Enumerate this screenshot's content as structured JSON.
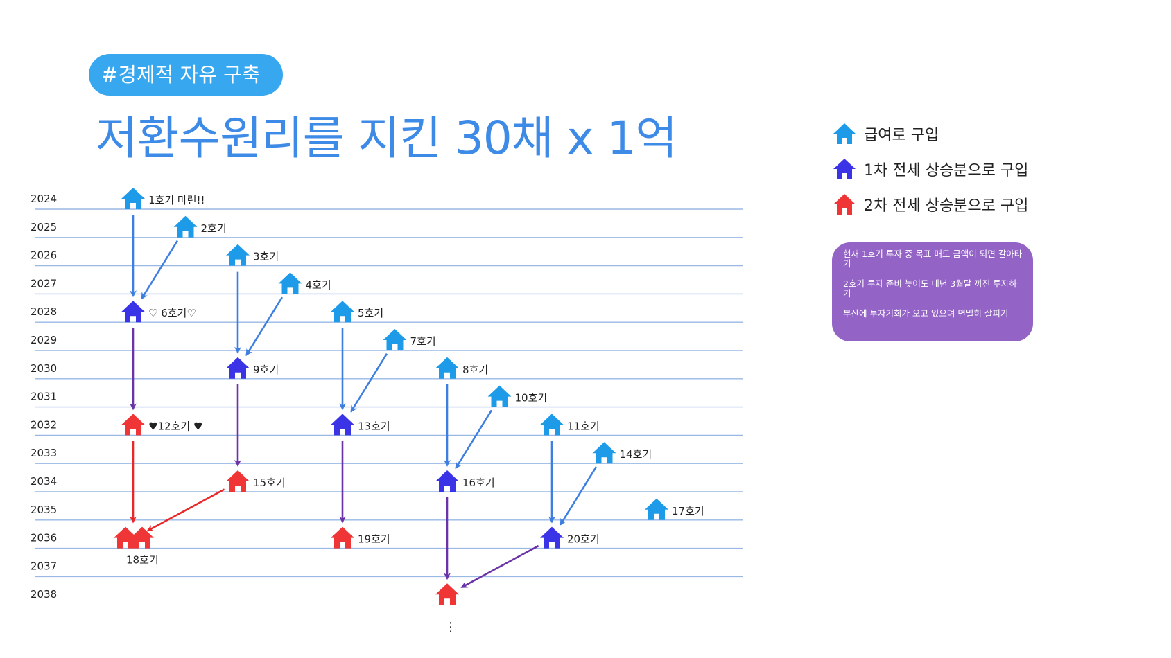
{
  "tag": "#경제적 자유 구축",
  "title": "저환수원리를 지킨 30채 x 1억",
  "colors": {
    "salary": "#1e9be8",
    "jeonse1": "#3a34e6",
    "jeonse2": "#ef3535",
    "arrow_blue": "#3d7fe0",
    "arrow_purple": "#6a33a8",
    "arrow_red": "#e8272a",
    "grid": "#9ab8e4",
    "note_bg": "#9363c6",
    "title": "#3d8be6",
    "tag_bg": "#37a8f0"
  },
  "years": [
    "2024",
    "2025",
    "2026",
    "2027",
    "2028",
    "2029",
    "2030",
    "2031",
    "2032",
    "2033",
    "2034",
    "2035",
    "2036",
    "2037",
    "2038"
  ],
  "houses": [
    {
      "id": 1,
      "label": "1호기 마련!!",
      "year": 2024,
      "col": 0,
      "type": "salary"
    },
    {
      "id": 2,
      "label": "2호기",
      "year": 2025,
      "col": 1,
      "type": "salary"
    },
    {
      "id": 3,
      "label": "3호기",
      "year": 2026,
      "col": 2,
      "type": "salary"
    },
    {
      "id": 4,
      "label": "4호기",
      "year": 2027,
      "col": 3,
      "type": "salary"
    },
    {
      "id": 5,
      "label": "5호기",
      "year": 2028,
      "col": 4,
      "type": "salary"
    },
    {
      "id": 6,
      "label": "♡ 6호기♡",
      "year": 2028,
      "col": 0,
      "type": "jeonse1"
    },
    {
      "id": 7,
      "label": "7호기",
      "year": 2029,
      "col": 5,
      "type": "salary"
    },
    {
      "id": 8,
      "label": "8호기",
      "year": 2030,
      "col": 6,
      "type": "salary"
    },
    {
      "id": 9,
      "label": "9호기",
      "year": 2030,
      "col": 2,
      "type": "jeonse1"
    },
    {
      "id": 10,
      "label": "10호기",
      "year": 2031,
      "col": 7,
      "type": "salary"
    },
    {
      "id": 11,
      "label": "11호기",
      "year": 2032,
      "col": 8,
      "type": "salary"
    },
    {
      "id": 12,
      "label": "♥12호기 ♥",
      "year": 2032,
      "col": 0,
      "type": "jeonse2"
    },
    {
      "id": 13,
      "label": "13호기",
      "year": 2032,
      "col": 4,
      "type": "jeonse1"
    },
    {
      "id": 14,
      "label": "14호기",
      "year": 2033,
      "col": 9,
      "type": "salary"
    },
    {
      "id": 15,
      "label": "15호기",
      "year": 2034,
      "col": 2,
      "type": "jeonse2"
    },
    {
      "id": 16,
      "label": "16호기",
      "year": 2034,
      "col": 6,
      "type": "jeonse1"
    },
    {
      "id": 17,
      "label": "17호기",
      "year": 2035,
      "col": 10,
      "type": "salary"
    },
    {
      "id": 18,
      "label": "18호기",
      "year": 2036,
      "col": 0,
      "type": "jeonse2",
      "double": true
    },
    {
      "id": 19,
      "label": "19호기",
      "year": 2036,
      "col": 4,
      "type": "jeonse2"
    },
    {
      "id": 20,
      "label": "20호기",
      "year": 2036,
      "col": 8,
      "type": "jeonse1"
    },
    {
      "id": 21,
      "label": "",
      "year": 2038,
      "col": 6,
      "type": "jeonse2"
    }
  ],
  "flows": [
    {
      "from": 1,
      "to": 6,
      "color": "blue"
    },
    {
      "from": 2,
      "to": 6,
      "color": "blue"
    },
    {
      "from": 3,
      "to": 9,
      "color": "blue"
    },
    {
      "from": 4,
      "to": 9,
      "color": "blue"
    },
    {
      "from": 5,
      "to": 13,
      "color": "blue"
    },
    {
      "from": 7,
      "to": 13,
      "color": "blue"
    },
    {
      "from": 8,
      "to": 16,
      "color": "blue"
    },
    {
      "from": 10,
      "to": 16,
      "color": "blue"
    },
    {
      "from": 11,
      "to": 20,
      "color": "blue"
    },
    {
      "from": 14,
      "to": 20,
      "color": "blue"
    },
    {
      "from": 6,
      "to": 12,
      "color": "purple"
    },
    {
      "from": 9,
      "to": 15,
      "color": "purple"
    },
    {
      "from": 13,
      "to": 19,
      "color": "purple"
    },
    {
      "from": 16,
      "to": 21,
      "color": "purple"
    },
    {
      "from": 20,
      "to": 21,
      "color": "purple"
    },
    {
      "from": 12,
      "to": 18,
      "color": "red"
    },
    {
      "from": 15,
      "to": 18,
      "color": "red"
    }
  ],
  "continuation": "⋮",
  "legend": [
    {
      "type": "salary",
      "label": "급여로 구입"
    },
    {
      "type": "jeonse1",
      "label": "1차 전세 상승분으로 구입"
    },
    {
      "type": "jeonse2",
      "label": "2차 전세 상승분으로 구입"
    }
  ],
  "notes": [
    "현재 1호기 투자 중 목표 매도 금액이 되면 갈아타기",
    "2호기 투자 준비 늦어도 내년 3월달 까진 투자하기",
    "부산에 투자기회가 오고 있으며 면밀히 살피기"
  ]
}
